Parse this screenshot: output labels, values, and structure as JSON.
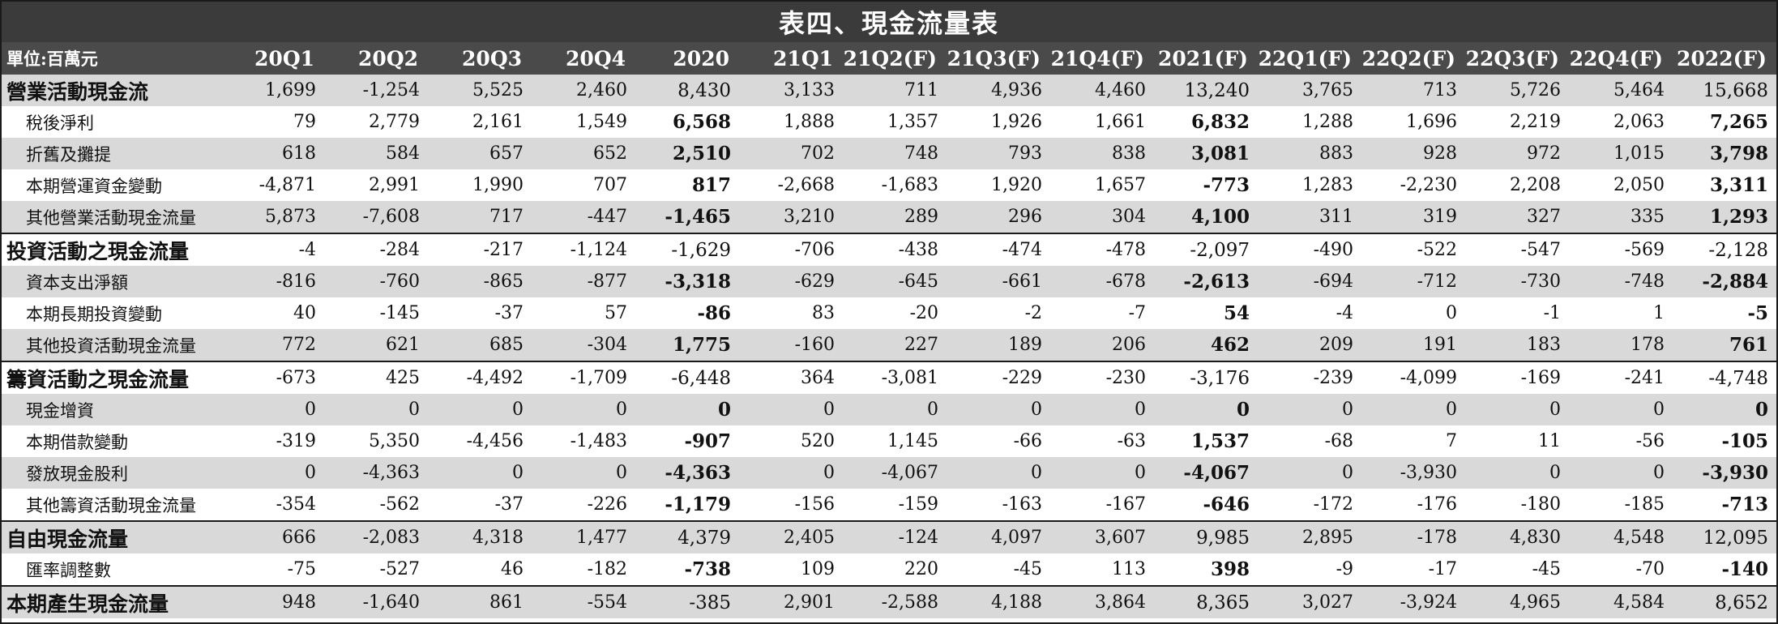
{
  "title": "表四、現金流量表",
  "unit_label": "單位:百萬元",
  "columns": [
    "20Q1",
    "20Q2",
    "20Q3",
    "20Q4",
    "2020",
    "21Q1",
    "21Q2(F)",
    "21Q3(F)",
    "21Q4(F)",
    "2021(F)",
    "22Q1(F)",
    "22Q2(F)",
    "22Q3(F)",
    "22Q4(F)",
    "2022(F)"
  ],
  "rows": [
    {
      "label": "營業活動現金流",
      "values": [
        "1,699",
        "-1,254",
        "5,525",
        "2,460",
        "8,430",
        "3,133",
        "711",
        "4,936",
        "4,460",
        "13,240",
        "3,765",
        "713",
        "5,726",
        "5,464",
        "15,668"
      ]
    },
    {
      "label": "稅後淨利",
      "values": [
        "79",
        "2,779",
        "2,161",
        "1,549",
        "6,568",
        "1,888",
        "1,357",
        "1,926",
        "1,661",
        "6,832",
        "1,288",
        "1,696",
        "2,219",
        "2,063",
        "7,265"
      ]
    },
    {
      "label": "折舊及攤提",
      "values": [
        "618",
        "584",
        "657",
        "652",
        "2,510",
        "702",
        "748",
        "793",
        "838",
        "3,081",
        "883",
        "928",
        "972",
        "1,015",
        "3,798"
      ]
    },
    {
      "label": "本期營運資金變動",
      "values": [
        "-4,871",
        "2,991",
        "1,990",
        "707",
        "817",
        "-2,668",
        "-1,683",
        "1,920",
        "1,657",
        "-773",
        "1,283",
        "-2,230",
        "2,208",
        "2,050",
        "3,311"
      ]
    },
    {
      "label": "其他營業活動現金流量",
      "values": [
        "5,873",
        "-7,608",
        "717",
        "-447",
        "-1,465",
        "3,210",
        "289",
        "296",
        "304",
        "4,100",
        "311",
        "319",
        "327",
        "335",
        "1,293"
      ]
    },
    {
      "label": "投資活動之現金流量",
      "values": [
        "-4",
        "-284",
        "-217",
        "-1,124",
        "-1,629",
        "-706",
        "-438",
        "-474",
        "-478",
        "-2,097",
        "-490",
        "-522",
        "-547",
        "-569",
        "-2,128"
      ]
    },
    {
      "label": "資本支出淨額",
      "values": [
        "-816",
        "-760",
        "-865",
        "-877",
        "-3,318",
        "-629",
        "-645",
        "-661",
        "-678",
        "-2,613",
        "-694",
        "-712",
        "-730",
        "-748",
        "-2,884"
      ]
    },
    {
      "label": "本期長期投資變動",
      "values": [
        "40",
        "-145",
        "-37",
        "57",
        "-86",
        "83",
        "-20",
        "-2",
        "-7",
        "54",
        "-4",
        "0",
        "-1",
        "1",
        "-5"
      ]
    },
    {
      "label": "其他投資活動現金流量",
      "values": [
        "772",
        "621",
        "685",
        "-304",
        "1,775",
        "-160",
        "227",
        "189",
        "206",
        "462",
        "209",
        "191",
        "183",
        "178",
        "761"
      ]
    },
    {
      "label": "籌資活動之現金流量",
      "values": [
        "-673",
        "425",
        "-4,492",
        "-1,709",
        "-6,448",
        "364",
        "-3,081",
        "-229",
        "-230",
        "-3,176",
        "-239",
        "-4,099",
        "-169",
        "-241",
        "-4,748"
      ]
    },
    {
      "label": "現金增資",
      "values": [
        "0",
        "0",
        "0",
        "0",
        "0",
        "0",
        "0",
        "0",
        "0",
        "0",
        "0",
        "0",
        "0",
        "0",
        "0"
      ]
    },
    {
      "label": "本期借款變動",
      "values": [
        "-319",
        "5,350",
        "-4,456",
        "-1,483",
        "-907",
        "520",
        "1,145",
        "-66",
        "-63",
        "1,537",
        "-68",
        "7",
        "11",
        "-56",
        "-105"
      ]
    },
    {
      "label": "發放現金股利",
      "values": [
        "0",
        "-4,363",
        "0",
        "0",
        "-4,363",
        "0",
        "-4,067",
        "0",
        "0",
        "-4,067",
        "0",
        "-3,930",
        "0",
        "0",
        "-3,930"
      ]
    },
    {
      "label": "其他籌資活動現金流量",
      "values": [
        "-354",
        "-562",
        "-37",
        "-226",
        "-1,179",
        "-156",
        "-159",
        "-163",
        "-167",
        "-646",
        "-172",
        "-176",
        "-180",
        "-185",
        "-713"
      ]
    },
    {
      "label": "自由現金流量",
      "values": [
        "666",
        "-2,083",
        "4,318",
        "1,477",
        "4,379",
        "2,405",
        "-124",
        "4,097",
        "3,607",
        "9,985",
        "2,895",
        "-178",
        "4,830",
        "4,548",
        "12,095"
      ]
    },
    {
      "label": "匯率調整數",
      "values": [
        "-75",
        "-527",
        "46",
        "-182",
        "-738",
        "109",
        "220",
        "-45",
        "113",
        "398",
        "-9",
        "-17",
        "-45",
        "-70",
        "-140"
      ]
    },
    {
      "label": "本期產生現金流量",
      "values": [
        "948",
        "-1,640",
        "861",
        "-554",
        "-385",
        "2,901",
        "-2,588",
        "4,188",
        "3,864",
        "8,365",
        "3,027",
        "-3,924",
        "4,965",
        "4,584",
        "8,652"
      ]
    }
  ]
}
